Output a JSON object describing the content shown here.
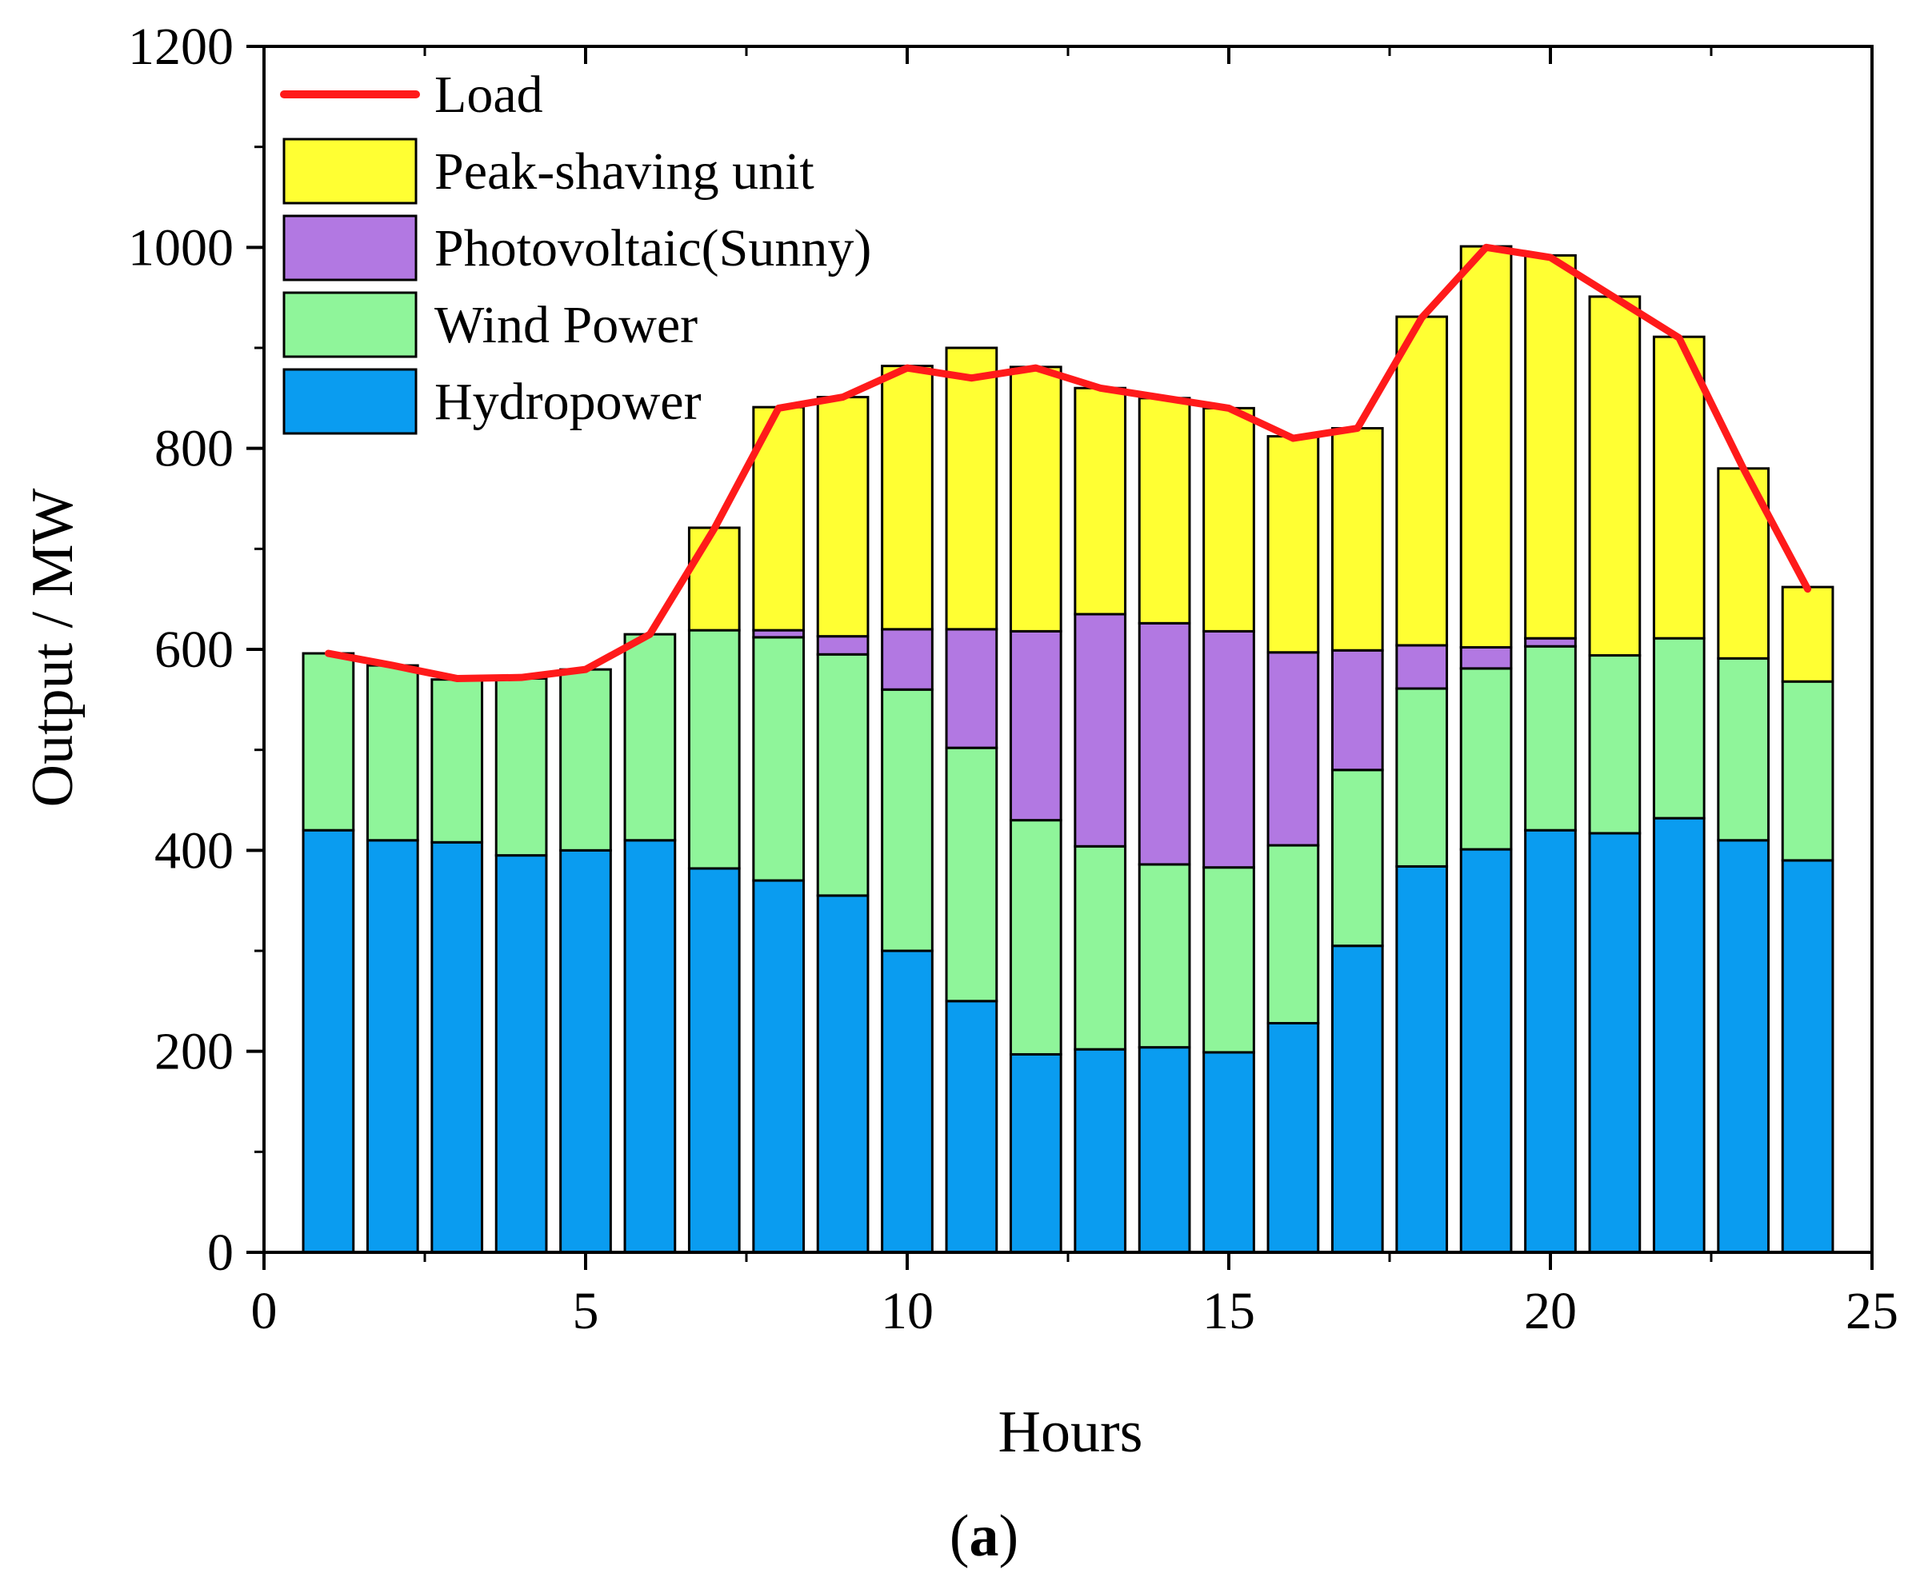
{
  "chart_data": {
    "type": "bar",
    "stacked": true,
    "panel_label": "(a)",
    "panel_label_open": "(",
    "panel_label_letter": "a",
    "panel_label_close": ")",
    "xlabel": "Hours",
    "ylabel": "Output / MW",
    "xlim": [
      0,
      25
    ],
    "ylim": [
      0,
      1200
    ],
    "x_ticks": [
      0,
      5,
      10,
      15,
      20,
      25
    ],
    "y_ticks": [
      0,
      200,
      400,
      600,
      800,
      1000,
      1200
    ],
    "x": [
      1,
      2,
      3,
      4,
      5,
      6,
      7,
      8,
      9,
      10,
      11,
      12,
      13,
      14,
      15,
      16,
      17,
      18,
      19,
      20,
      21,
      22,
      23,
      24
    ],
    "series": [
      {
        "name": "Hydropower",
        "color": "#0a9cf0",
        "values": [
          420,
          410,
          408,
          395,
          400,
          410,
          382,
          370,
          355,
          300,
          250,
          197,
          202,
          204,
          199,
          228,
          305,
          384,
          401,
          420,
          417,
          432,
          410,
          390
        ]
      },
      {
        "name": "Wind Power",
        "color": "#8ff59a",
        "values": [
          176,
          174,
          162,
          176,
          180,
          205,
          237,
          242,
          240,
          260,
          252,
          233,
          202,
          182,
          184,
          177,
          175,
          177,
          180,
          183,
          177,
          179,
          181,
          178
        ]
      },
      {
        "name": "Photovoltaic(Sunny)",
        "color": "#b278e2",
        "values": [
          0,
          0,
          0,
          0,
          0,
          0,
          0,
          7,
          18,
          60,
          118,
          188,
          231,
          240,
          235,
          192,
          119,
          43,
          21,
          8,
          0,
          0,
          0,
          0
        ]
      },
      {
        "name": "Peak-shaving unit",
        "color": "#ffff33",
        "values": [
          0,
          0,
          0,
          0,
          0,
          0,
          102,
          222,
          238,
          262,
          280,
          263,
          225,
          224,
          222,
          215,
          221,
          327,
          399,
          381,
          357,
          300,
          189,
          94
        ]
      }
    ],
    "line": {
      "name": "Load",
      "color": "#ff1a1a",
      "values": [
        596,
        584,
        571,
        572,
        580,
        615,
        720,
        840,
        851,
        880,
        870,
        880,
        860,
        850,
        840,
        810,
        820,
        930,
        1000,
        990,
        950,
        910,
        780,
        660
      ]
    },
    "legend_order": [
      "Load",
      "Peak-shaving unit",
      "Photovoltaic(Sunny)",
      "Wind Power",
      "Hydropower"
    ],
    "legend_position": "top-left"
  }
}
